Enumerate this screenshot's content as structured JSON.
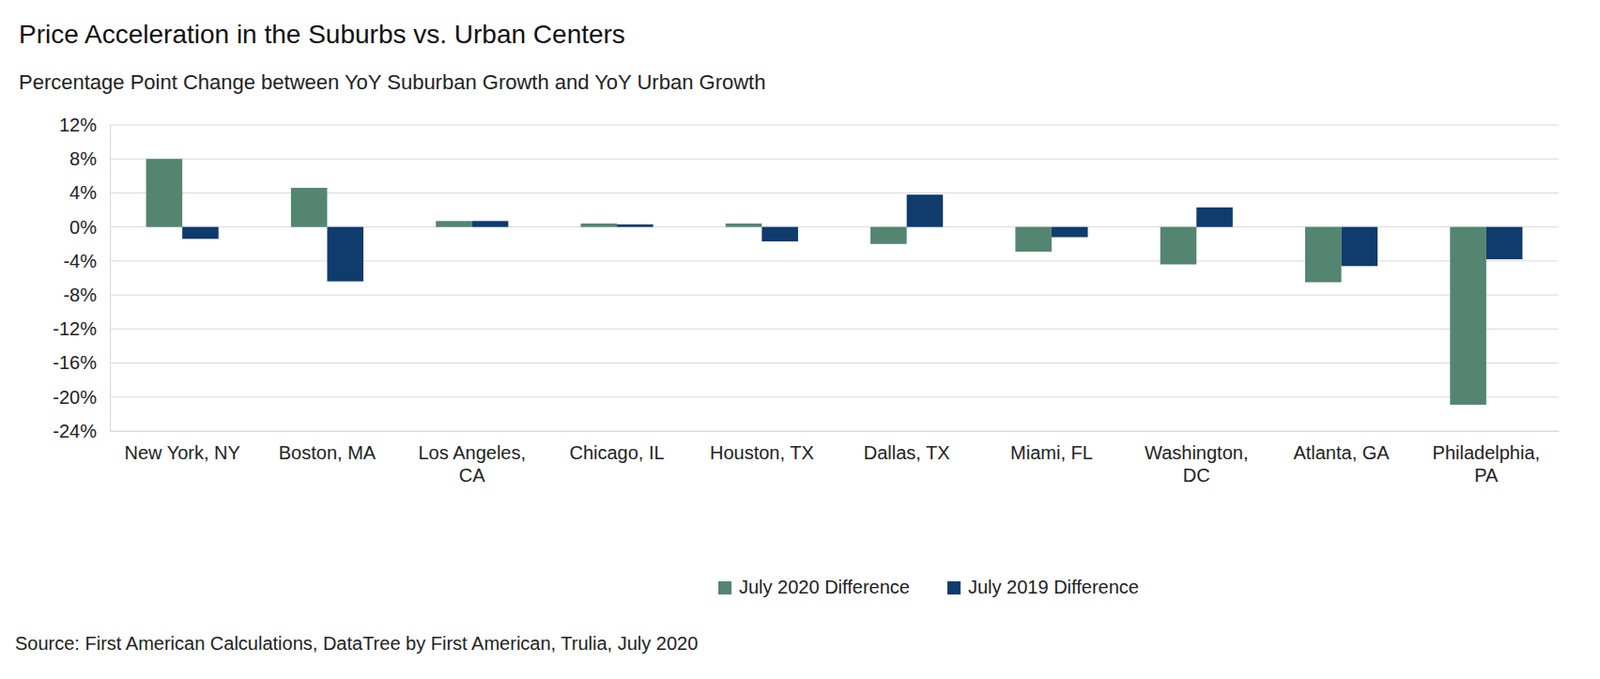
{
  "chart_data": {
    "type": "bar",
    "title": "Price Acceleration in the Suburbs vs. Urban Centers",
    "subtitle": "Percentage Point Change between YoY Suburban Growth and YoY Urban Growth",
    "source": "Source: First American Calculations, DataTree by First American, Trulia, July 2020",
    "categories": [
      "New York, NY",
      "Boston, MA",
      "Los Angeles, CA",
      "Chicago, IL",
      "Houston, TX",
      "Dallas, TX",
      "Miami, FL",
      "Washington, DC",
      "Atlanta, GA",
      "Philadelphia, PA"
    ],
    "series": [
      {
        "name": "July 2020 Difference",
        "color": "#548571",
        "values": [
          8.0,
          4.6,
          0.7,
          0.4,
          0.4,
          -2.0,
          -2.9,
          -4.4,
          -6.5,
          -20.9
        ]
      },
      {
        "name": "July 2019 Difference",
        "color": "#0f3b6d",
        "values": [
          -1.4,
          -6.4,
          0.7,
          0.3,
          -1.7,
          3.8,
          -1.2,
          2.3,
          -4.6,
          -3.8
        ]
      }
    ],
    "ylim": [
      -24,
      12
    ],
    "yticks": [
      {
        "value": 12,
        "label": "12%"
      },
      {
        "value": 8,
        "label": "8%"
      },
      {
        "value": 4,
        "label": "4%"
      },
      {
        "value": 0,
        "label": "0%"
      },
      {
        "value": -4,
        "label": "-4%"
      },
      {
        "value": -8,
        "label": "-8%"
      },
      {
        "value": -12,
        "label": "-12%"
      },
      {
        "value": -16,
        "label": "-16%"
      },
      {
        "value": -20,
        "label": "-20%"
      },
      {
        "value": -24,
        "label": "-24%"
      }
    ],
    "grid": true,
    "legend": "bottom"
  }
}
